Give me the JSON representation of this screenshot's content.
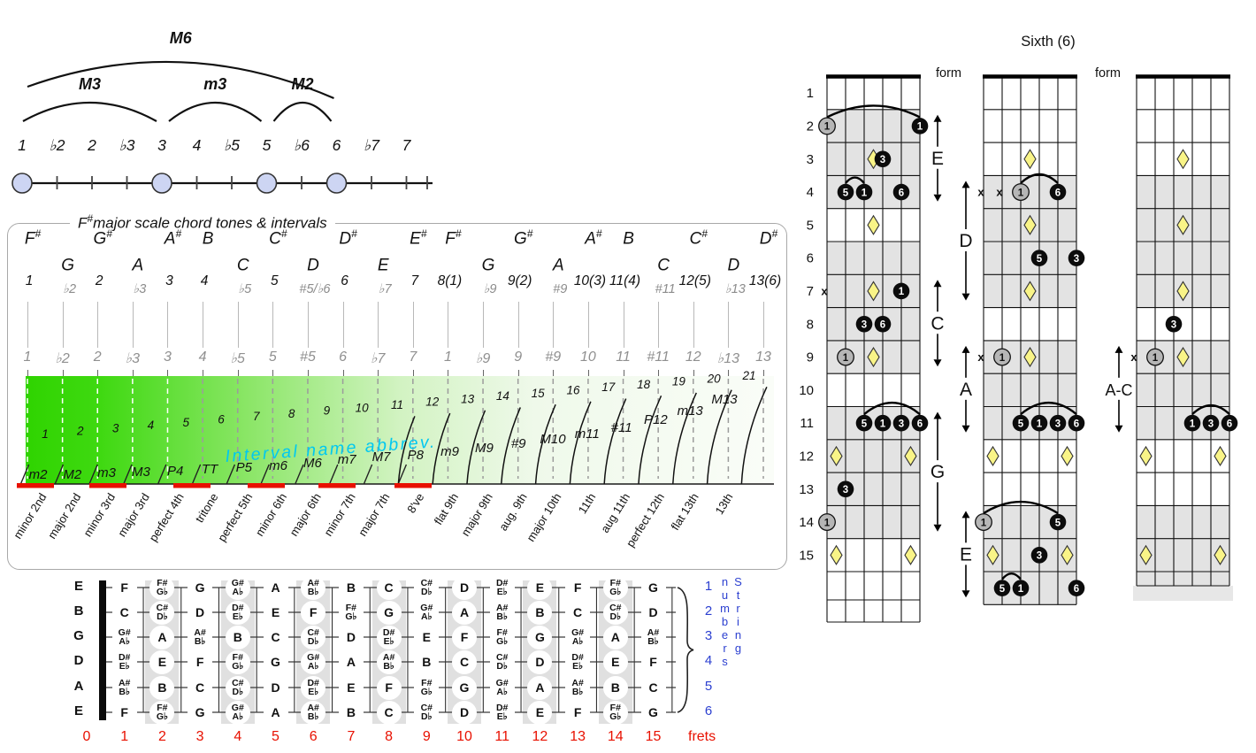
{
  "colors": {
    "green": "#2fd400",
    "cyan": "#00c8f0",
    "red": "#e81000",
    "blue": "#2b3fd0",
    "lavender": "#cdd5f3",
    "yellow_diamond": "#f9f487",
    "shade_gray": "#e0e0e0",
    "gray_dot": "#b6b6b6",
    "black_dot": "#0c0c0c"
  },
  "interval_diagram": {
    "degrees": [
      "1",
      "♭2",
      "2",
      "♭3",
      "3",
      "4",
      "♭5",
      "5",
      "♭6",
      "6",
      "♭7",
      "7"
    ],
    "dot_indices": [
      0,
      4,
      7,
      9
    ],
    "arcs": [
      {
        "label": "M6",
        "from": 0,
        "to": 9,
        "size": "large"
      },
      {
        "label": "M3",
        "from": 0,
        "to": 4,
        "size": "small"
      },
      {
        "label": "m3",
        "from": 4,
        "to": 7,
        "size": "small"
      },
      {
        "label": "M2",
        "from": 7,
        "to": 9,
        "size": "small"
      }
    ]
  },
  "scale_panel": {
    "title": {
      "root": "F",
      "sup": "#",
      "rest": "major scale chord tones & intervals"
    },
    "columns": [
      {
        "note": "F",
        "sup": "#",
        "row": "top",
        "degree": "1",
        "dstyle": "black",
        "tick": "1"
      },
      {
        "note": "G",
        "sup": "",
        "row": "mid",
        "degree": "♭2",
        "dstyle": "gray",
        "tick": "♭2"
      },
      {
        "note": "G",
        "sup": "#",
        "row": "top",
        "degree": "2",
        "dstyle": "black",
        "tick": "2"
      },
      {
        "note": "A",
        "sup": "",
        "row": "mid",
        "degree": "♭3",
        "dstyle": "gray",
        "tick": "♭3"
      },
      {
        "note": "A",
        "sup": "#",
        "row": "top",
        "degree": "3",
        "dstyle": "black",
        "tick": "3"
      },
      {
        "note": "B",
        "sup": "",
        "row": "top",
        "degree": "4",
        "dstyle": "black",
        "tick": "4"
      },
      {
        "note": "C",
        "sup": "",
        "row": "mid",
        "degree": "♭5",
        "dstyle": "gray",
        "tick": "♭5"
      },
      {
        "note": "C",
        "sup": "#",
        "row": "top",
        "degree": "5",
        "dstyle": "black",
        "tick": "5"
      },
      {
        "note": "D",
        "sup": "",
        "row": "mid",
        "degree": "#5/♭6",
        "dstyle": "gray",
        "tick": "#5"
      },
      {
        "note": "D",
        "sup": "#",
        "row": "top",
        "degree": "6",
        "dstyle": "black",
        "tick": "6"
      },
      {
        "note": "E",
        "sup": "",
        "row": "mid",
        "degree": "♭7",
        "dstyle": "gray",
        "tick": "♭7"
      },
      {
        "note": "E",
        "sup": "#",
        "row": "top",
        "degree": "7",
        "dstyle": "black",
        "tick": "7"
      },
      {
        "note": "F",
        "sup": "#",
        "row": "top",
        "degree": "8(1)",
        "dstyle": "black",
        "tick": "1"
      },
      {
        "note": "G",
        "sup": "",
        "row": "mid",
        "degree": "♭9",
        "dstyle": "gray",
        "tick": "♭9"
      },
      {
        "note": "G",
        "sup": "#",
        "row": "top",
        "degree": "9(2)",
        "dstyle": "black",
        "tick": "9"
      },
      {
        "note": "A",
        "sup": "",
        "row": "mid",
        "degree": "#9",
        "dstyle": "gray",
        "tick": "#9"
      },
      {
        "note": "A",
        "sup": "#",
        "row": "top",
        "degree": "10(3)",
        "dstyle": "black",
        "tick": "10"
      },
      {
        "note": "B",
        "sup": "",
        "row": "top",
        "degree": "11(4)",
        "dstyle": "black",
        "tick": "11"
      },
      {
        "note": "C",
        "sup": "",
        "row": "mid",
        "degree": "#11",
        "dstyle": "gray",
        "tick": "#11"
      },
      {
        "note": "C",
        "sup": "#",
        "row": "top",
        "degree": "12(5)",
        "dstyle": "black",
        "tick": "12"
      },
      {
        "note": "D",
        "sup": "",
        "row": "mid",
        "degree": "♭13",
        "dstyle": "gray",
        "tick": "♭13"
      },
      {
        "note": "D",
        "sup": "#",
        "row": "top",
        "degree": "13(6)",
        "dstyle": "black",
        "tick": "13"
      }
    ],
    "fan": {
      "label": "Interval name abbrev.",
      "items": [
        {
          "n": 1,
          "abbrev": "m2",
          "name": "minor 2nd",
          "red": true
        },
        {
          "n": 2,
          "abbrev": "M2",
          "name": "major 2nd",
          "red": false
        },
        {
          "n": 3,
          "abbrev": "m3",
          "name": "minor 3rd",
          "red": true
        },
        {
          "n": 4,
          "abbrev": "M3",
          "name": "major 3rd",
          "red": false
        },
        {
          "n": 5,
          "abbrev": "P4",
          "name": "perfect 4th",
          "red": false
        },
        {
          "n": 6,
          "abbrev": "TT",
          "name": "tritone",
          "red": true
        },
        {
          "n": 7,
          "abbrev": "P5",
          "name": "perfect 5th",
          "red": false
        },
        {
          "n": 8,
          "abbrev": "m6",
          "name": "minor 6th",
          "red": true
        },
        {
          "n": 9,
          "abbrev": "M6",
          "name": "major 6th",
          "red": false
        },
        {
          "n": 10,
          "abbrev": "m7",
          "name": "minor 7th",
          "red": true
        },
        {
          "n": 11,
          "abbrev": "M7",
          "name": "major 7th",
          "red": false
        },
        {
          "n": 12,
          "abbrev": "P8",
          "name": "8've",
          "red": true
        },
        {
          "n": 13,
          "abbrev": "m9",
          "name": "flat 9th",
          "red": false
        },
        {
          "n": 14,
          "abbrev": "M9",
          "name": "major 9th",
          "red": false
        },
        {
          "n": 15,
          "abbrev": "#9",
          "name": "aug. 9th",
          "red": false
        },
        {
          "n": 16,
          "abbrev": "M10",
          "name": "major 10th",
          "red": false
        },
        {
          "n": 17,
          "abbrev": "m11",
          "name": "11th",
          "red": false
        },
        {
          "n": 18,
          "abbrev": "#11",
          "name": "aug 11th",
          "red": false
        },
        {
          "n": 19,
          "abbrev": "P12",
          "name": "perfect 12th",
          "red": false
        },
        {
          "n": 20,
          "abbrev": "m13",
          "name": "flat 13th",
          "red": false
        },
        {
          "n": 21,
          "abbrev": "M13",
          "name": "13th",
          "red": false
        }
      ]
    }
  },
  "fretboard_chart": {
    "open_strings": [
      "E",
      "B",
      "G",
      "D",
      "A",
      "E"
    ],
    "frets": [
      {
        "notes": [
          [
            "F"
          ],
          [
            "C"
          ],
          [
            "G#",
            "A♭"
          ],
          [
            "D#",
            "E♭"
          ],
          [
            "A#",
            "B♭"
          ],
          [
            "F"
          ]
        ]
      },
      {
        "notes": [
          [
            "F#",
            "G♭"
          ],
          [
            "C#",
            "D♭"
          ],
          [
            "A"
          ],
          [
            "E"
          ],
          [
            "B"
          ],
          [
            "F#",
            "G♭"
          ]
        ]
      },
      {
        "notes": [
          [
            "G"
          ],
          [
            "D"
          ],
          [
            "A#",
            "B♭"
          ],
          [
            "F"
          ],
          [
            "C"
          ],
          [
            "G"
          ]
        ]
      },
      {
        "notes": [
          [
            "G#",
            "A♭"
          ],
          [
            "D#",
            "E♭"
          ],
          [
            "B"
          ],
          [
            "F#",
            "G♭"
          ],
          [
            "C#",
            "D♭"
          ],
          [
            "G#",
            "A♭"
          ]
        ]
      },
      {
        "notes": [
          [
            "A"
          ],
          [
            "E"
          ],
          [
            "C"
          ],
          [
            "G"
          ],
          [
            "D"
          ],
          [
            "A"
          ]
        ]
      },
      {
        "notes": [
          [
            "A#",
            "B♭"
          ],
          [
            "F"
          ],
          [
            "C#",
            "D♭"
          ],
          [
            "G#",
            "A♭"
          ],
          [
            "D#",
            "E♭"
          ],
          [
            "A#",
            "B♭"
          ]
        ]
      },
      {
        "notes": [
          [
            "B"
          ],
          [
            "F#",
            "G♭"
          ],
          [
            "D"
          ],
          [
            "A"
          ],
          [
            "E"
          ],
          [
            "B"
          ]
        ]
      },
      {
        "notes": [
          [
            "C"
          ],
          [
            "G"
          ],
          [
            "D#",
            "E♭"
          ],
          [
            "A#",
            "B♭"
          ],
          [
            "F"
          ],
          [
            "C"
          ]
        ]
      },
      {
        "notes": [
          [
            "C#",
            "D♭"
          ],
          [
            "G#",
            "A♭"
          ],
          [
            "E"
          ],
          [
            "B"
          ],
          [
            "F#",
            "G♭"
          ],
          [
            "C#",
            "D♭"
          ]
        ]
      },
      {
        "notes": [
          [
            "D"
          ],
          [
            "A"
          ],
          [
            "F"
          ],
          [
            "C"
          ],
          [
            "G"
          ],
          [
            "D"
          ]
        ]
      },
      {
        "notes": [
          [
            "D#",
            "E♭"
          ],
          [
            "A#",
            "B♭"
          ],
          [
            "F#",
            "G♭"
          ],
          [
            "C#",
            "D♭"
          ],
          [
            "G#",
            "A♭"
          ],
          [
            "D#",
            "E♭"
          ]
        ]
      },
      {
        "notes": [
          [
            "E"
          ],
          [
            "B"
          ],
          [
            "G"
          ],
          [
            "D"
          ],
          [
            "A"
          ],
          [
            "E"
          ]
        ]
      },
      {
        "notes": [
          [
            "F"
          ],
          [
            "C"
          ],
          [
            "G#",
            "A♭"
          ],
          [
            "D#",
            "E♭"
          ],
          [
            "A#",
            "B♭"
          ],
          [
            "F"
          ]
        ]
      },
      {
        "notes": [
          [
            "F#",
            "G♭"
          ],
          [
            "C#",
            "D♭"
          ],
          [
            "A"
          ],
          [
            "E"
          ],
          [
            "B"
          ],
          [
            "F#",
            "G♭"
          ]
        ]
      },
      {
        "notes": [
          [
            "G"
          ],
          [
            "D"
          ],
          [
            "A#",
            "B♭"
          ],
          [
            "F"
          ],
          [
            "C"
          ],
          [
            "G"
          ]
        ]
      }
    ],
    "fret_numbers": [
      "0",
      "1",
      "2",
      "3",
      "4",
      "5",
      "6",
      "7",
      "8",
      "9",
      "10",
      "11",
      "12",
      "13",
      "14",
      "15"
    ],
    "frets_label": "frets",
    "string_numbers": [
      "1",
      "2",
      "3",
      "4",
      "5",
      "6"
    ],
    "string_numbers_label": "String numbers"
  },
  "chord_forms": {
    "title": "Sixth (6)",
    "form_label": "form",
    "muted_label": "x",
    "fret_labels": [
      "1",
      "2",
      "3",
      "4",
      "5",
      "6",
      "7",
      "8",
      "9",
      "10",
      "11",
      "12",
      "13",
      "14",
      "15"
    ],
    "markers": [
      {
        "label": "E",
        "anchor": 0,
        "side": "right",
        "from": 2,
        "to": 4
      },
      {
        "label": "C",
        "anchor": 0,
        "side": "right",
        "from": 7,
        "to": 9
      },
      {
        "label": "G",
        "anchor": 0,
        "side": "right",
        "from": 11,
        "to": 14
      },
      {
        "label": "D",
        "anchor": 1,
        "side": "left",
        "from": 4,
        "to": 7
      },
      {
        "label": "A",
        "anchor": 1,
        "side": "left",
        "from": 9,
        "to": 11
      },
      {
        "label": "E",
        "anchor": 1,
        "side": "left",
        "from": 14,
        "to": 16
      },
      {
        "label": "A-C",
        "anchor": 2,
        "side": "left",
        "from": 9,
        "to": 11
      }
    ],
    "diagrams": [
      {
        "shaded_frets": [
          2,
          3,
          4,
          6,
          7,
          8,
          9,
          11,
          12,
          13,
          14
        ],
        "inlays": [
          [
            3,
            "c"
          ],
          [
            5,
            "c"
          ],
          [
            7,
            "c"
          ],
          [
            9,
            "c"
          ],
          [
            12,
            "d"
          ],
          [
            15,
            "d"
          ]
        ],
        "dots": [
          [
            2,
            6,
            "1",
            "gray"
          ],
          [
            2,
            1,
            "1",
            "black"
          ],
          [
            3,
            3,
            "3",
            "black"
          ],
          [
            4,
            5,
            "5",
            "black"
          ],
          [
            4,
            4,
            "1",
            "black"
          ],
          [
            4,
            2,
            "6",
            "black"
          ],
          [
            7,
            2,
            "1",
            "black"
          ],
          [
            8,
            4,
            "3",
            "black"
          ],
          [
            8,
            3,
            "6",
            "black"
          ],
          [
            9,
            5,
            "1",
            "gray"
          ],
          [
            11,
            4,
            "5",
            "black"
          ],
          [
            11,
            3,
            "1",
            "black"
          ],
          [
            11,
            2,
            "3",
            "black"
          ],
          [
            11,
            1,
            "6",
            "black"
          ],
          [
            13,
            5,
            "3",
            "black"
          ],
          [
            14,
            6,
            "1",
            "gray"
          ]
        ],
        "muted": [
          [
            7,
            6
          ]
        ],
        "arcs": [
          [
            2,
            6,
            1
          ],
          [
            4,
            5,
            4
          ],
          [
            11,
            4,
            1
          ]
        ]
      },
      {
        "shaded_frets": [
          4,
          5,
          6,
          7,
          9,
          10,
          11,
          14,
          15,
          16
        ],
        "inlays": [
          [
            3,
            "c"
          ],
          [
            5,
            "c"
          ],
          [
            7,
            "c"
          ],
          [
            9,
            "c"
          ],
          [
            12,
            "d"
          ],
          [
            15,
            "d"
          ]
        ],
        "dots": [
          [
            4,
            4,
            "1",
            "gray"
          ],
          [
            4,
            2,
            "6",
            "black"
          ],
          [
            6,
            3,
            "5",
            "black"
          ],
          [
            6,
            1,
            "3",
            "black"
          ],
          [
            9,
            5,
            "1",
            "gray"
          ],
          [
            11,
            4,
            "5",
            "black"
          ],
          [
            11,
            3,
            "1",
            "black"
          ],
          [
            11,
            2,
            "3",
            "black"
          ],
          [
            11,
            1,
            "6",
            "black"
          ],
          [
            14,
            6,
            "1",
            "gray"
          ],
          [
            14,
            2,
            "5",
            "black"
          ],
          [
            15,
            3,
            "3",
            "black"
          ],
          [
            16,
            5,
            "5",
            "black"
          ],
          [
            16,
            4,
            "1",
            "black"
          ],
          [
            16,
            1,
            "6",
            "black"
          ]
        ],
        "muted": [
          [
            4,
            6
          ],
          [
            4,
            5
          ],
          [
            9,
            6
          ]
        ],
        "arcs": [
          [
            4,
            4,
            2
          ],
          [
            11,
            4,
            1
          ],
          [
            14,
            6,
            2
          ],
          [
            16,
            5,
            4
          ]
        ]
      },
      {
        "shaded_frets": [
          4,
          5,
          6,
          7,
          9,
          10,
          11,
          14,
          15,
          16
        ],
        "inlays": [
          [
            3,
            "c"
          ],
          [
            5,
            "c"
          ],
          [
            7,
            "c"
          ],
          [
            9,
            "c"
          ],
          [
            12,
            "d"
          ],
          [
            15,
            "d"
          ]
        ],
        "dots": [
          [
            8,
            4,
            "3",
            "black"
          ],
          [
            9,
            5,
            "1",
            "gray"
          ],
          [
            11,
            3,
            "1",
            "black"
          ],
          [
            11,
            2,
            "3",
            "black"
          ],
          [
            11,
            1,
            "6",
            "black"
          ]
        ],
        "muted": [
          [
            9,
            6
          ]
        ],
        "arcs": [
          [
            11,
            3,
            1
          ]
        ]
      }
    ]
  }
}
